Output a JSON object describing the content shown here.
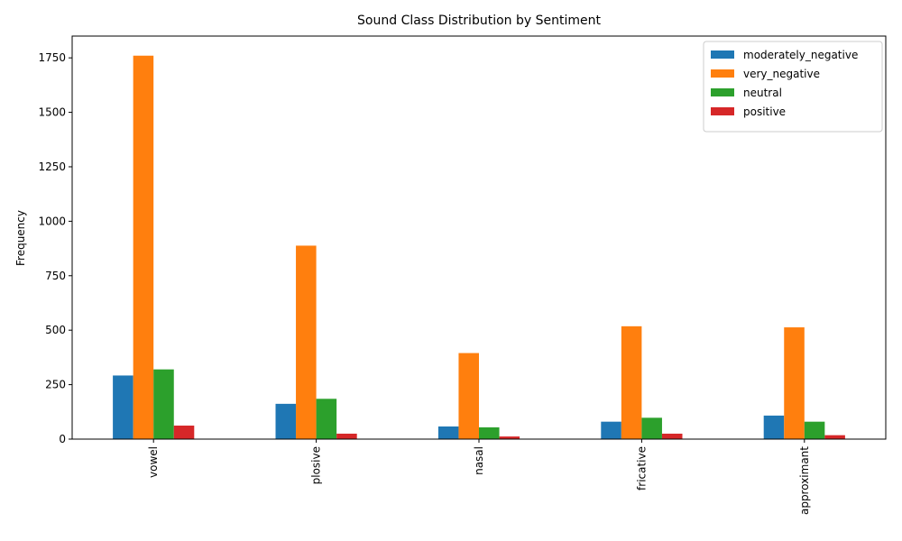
{
  "chart_data": {
    "type": "bar",
    "title": "Sound Class Distribution by Sentiment",
    "xlabel": "",
    "ylabel": "Frequency",
    "categories": [
      "vowel",
      "plosive",
      "nasal",
      "fricative",
      "approximant"
    ],
    "series": [
      {
        "name": "moderately_negative",
        "color": "#1f77b4",
        "values": [
          292,
          162,
          58,
          80,
          108
        ]
      },
      {
        "name": "very_negative",
        "color": "#ff7f0e",
        "values": [
          1760,
          888,
          395,
          518,
          513
        ]
      },
      {
        "name": "neutral",
        "color": "#2ca02c",
        "values": [
          320,
          185,
          54,
          98,
          80
        ]
      },
      {
        "name": "positive",
        "color": "#d62728",
        "values": [
          62,
          25,
          12,
          25,
          18
        ]
      }
    ],
    "ylim": [
      0,
      1850
    ],
    "yticks": [
      0,
      250,
      500,
      750,
      1000,
      1250,
      1500,
      1750
    ],
    "grid": false,
    "legend_position": "top-right"
  }
}
